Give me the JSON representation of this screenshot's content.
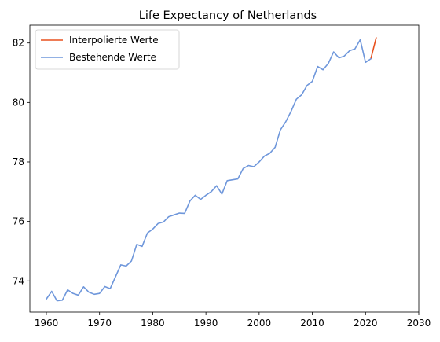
{
  "chart_data": {
    "type": "line",
    "title": "Life Expectancy of Netherlands",
    "xlabel": "",
    "ylabel": "",
    "xlim": [
      1956.9,
      2030
    ],
    "ylim": [
      72.95,
      82.6
    ],
    "x_ticks": [
      1960,
      1970,
      1980,
      1990,
      2000,
      2010,
      2020,
      2030
    ],
    "y_ticks": [
      74,
      76,
      78,
      80,
      82
    ],
    "grid": false,
    "legend_position": "top-left",
    "series": [
      {
        "name": "Interpolierte Werte",
        "color": "#e8511e",
        "x": [
          2021,
          2022
        ],
        "y": [
          81.47,
          82.18
        ]
      },
      {
        "name": "Bestehende Werte",
        "color": "#6f97db",
        "x": [
          1960,
          1961,
          1962,
          1963,
          1964,
          1965,
          1966,
          1967,
          1968,
          1969,
          1970,
          1971,
          1972,
          1973,
          1974,
          1975,
          1976,
          1977,
          1978,
          1979,
          1980,
          1981,
          1982,
          1983,
          1984,
          1985,
          1986,
          1987,
          1988,
          1989,
          1990,
          1991,
          1992,
          1993,
          1994,
          1995,
          1996,
          1997,
          1998,
          1999,
          2000,
          2001,
          2002,
          2003,
          2004,
          2005,
          2006,
          2007,
          2008,
          2009,
          2010,
          2011,
          2012,
          2013,
          2014,
          2015,
          2016,
          2017,
          2018,
          2019,
          2020,
          2021
        ],
        "y": [
          73.39,
          73.65,
          73.33,
          73.35,
          73.7,
          73.58,
          73.52,
          73.8,
          73.62,
          73.55,
          73.58,
          73.81,
          73.74,
          74.14,
          74.54,
          74.5,
          74.67,
          75.23,
          75.16,
          75.61,
          75.74,
          75.93,
          75.98,
          76.16,
          76.22,
          76.28,
          76.27,
          76.69,
          76.88,
          76.74,
          76.88,
          77.0,
          77.2,
          76.92,
          77.37,
          77.4,
          77.43,
          77.78,
          77.88,
          77.84,
          78.0,
          78.2,
          78.29,
          78.49,
          79.08,
          79.35,
          79.7,
          80.11,
          80.26,
          80.57,
          80.71,
          81.21,
          81.1,
          81.31,
          81.7,
          81.5,
          81.56,
          81.74,
          81.8,
          82.11,
          81.35,
          81.47
        ]
      }
    ]
  }
}
